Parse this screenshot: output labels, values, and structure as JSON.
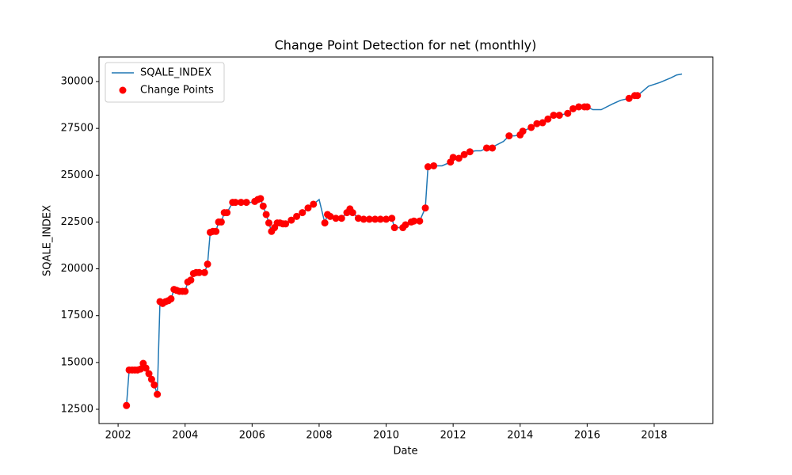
{
  "chart_data": {
    "type": "line",
    "title": "Change Point Detection for net (monthly)",
    "x_label": "Date",
    "y_label": "SQALE_INDEX",
    "xlim": [
      2001.43,
      2019.75
    ],
    "ylim": [
      11739,
      31311
    ],
    "xticks": [
      2002,
      2004,
      2006,
      2008,
      2010,
      2012,
      2014,
      2016,
      2018
    ],
    "yticks": [
      12500,
      15000,
      17500,
      20000,
      22500,
      25000,
      27500,
      30000
    ],
    "legend": "upper left",
    "series": [
      {
        "name": "SQALE_INDEX",
        "type": "line",
        "color": "#1f77b4",
        "x": [
          2002.25,
          2002.33,
          2002.42,
          2002.5,
          2002.58,
          2002.67,
          2002.75,
          2002.83,
          2002.92,
          2003.0,
          2003.08,
          2003.17,
          2003.25,
          2003.33,
          2003.42,
          2003.5,
          2003.58,
          2003.67,
          2003.75,
          2003.83,
          2003.92,
          2004.0,
          2004.08,
          2004.17,
          2004.25,
          2004.33,
          2004.42,
          2004.58,
          2004.67,
          2004.75,
          2004.83,
          2004.92,
          2005.0,
          2005.08,
          2005.17,
          2005.25,
          2005.42,
          2005.5,
          2005.67,
          2005.83,
          2006.0,
          2006.08,
          2006.17,
          2006.25,
          2006.33,
          2006.42,
          2006.5,
          2006.58,
          2006.67,
          2006.75,
          2006.83,
          2006.92,
          2007.0,
          2007.17,
          2007.33,
          2007.5,
          2007.67,
          2007.83,
          2008.0,
          2008.17,
          2008.25,
          2008.33,
          2008.5,
          2008.67,
          2008.83,
          2008.92,
          2009.0,
          2009.17,
          2009.33,
          2009.5,
          2010.0,
          2010.17,
          2010.25,
          2010.5,
          2010.58,
          2010.75,
          2010.83,
          2011.0,
          2011.17,
          2011.25,
          2011.42,
          2011.67,
          2011.92,
          2012.0,
          2012.17,
          2012.33,
          2012.5,
          2012.67,
          2012.83,
          2013.0,
          2013.17,
          2013.5,
          2013.67,
          2013.83,
          2014.0,
          2014.08,
          2014.33,
          2014.5,
          2014.67,
          2014.83,
          2015.0,
          2015.17,
          2015.42,
          2015.58,
          2015.75,
          2016.0,
          2016.17,
          2016.42,
          2016.75,
          2017.0,
          2017.25,
          2017.42,
          2017.5,
          2017.67,
          2017.83,
          2018.17,
          2018.5,
          2018.67,
          2018.83
        ],
        "values": [
          12700,
          14600,
          14600,
          14600,
          14600,
          14650,
          14950,
          14700,
          14400,
          14100,
          13800,
          13300,
          18250,
          18150,
          18250,
          18300,
          18400,
          18900,
          18850,
          18800,
          18800,
          18800,
          19300,
          19400,
          19750,
          19800,
          19800,
          19800,
          20250,
          21950,
          22000,
          22000,
          22500,
          22500,
          23000,
          23000,
          23550,
          23550,
          23550,
          23550,
          23550,
          23600,
          23700,
          23750,
          23350,
          22900,
          22450,
          22000,
          22200,
          22450,
          22450,
          22400,
          22400,
          22600,
          22800,
          23000,
          23250,
          23450,
          23700,
          22450,
          22900,
          22800,
          22700,
          22700,
          23000,
          23200,
          23000,
          22700,
          22650,
          22650,
          22650,
          22700,
          22200,
          22200,
          22350,
          22500,
          22550,
          22550,
          23250,
          25450,
          25500,
          25500,
          25700,
          25950,
          25900,
          26100,
          26250,
          26300,
          26300,
          26450,
          26500,
          26800,
          27100,
          27100,
          27150,
          27350,
          27550,
          27750,
          27800,
          28000,
          28200,
          28200,
          28300,
          28550,
          28650,
          28650,
          28500,
          28500,
          28800,
          29000,
          29100,
          29250,
          29250,
          29500,
          29750,
          29950,
          30200,
          30350,
          30400
        ]
      },
      {
        "name": "Change Points",
        "type": "scatter",
        "color": "#ff0000",
        "x": [
          2002.25,
          2002.33,
          2002.42,
          2002.5,
          2002.58,
          2002.67,
          2002.75,
          2002.83,
          2002.92,
          2003.0,
          2003.08,
          2003.17,
          2003.25,
          2003.33,
          2003.42,
          2003.5,
          2003.58,
          2003.67,
          2003.75,
          2003.83,
          2003.92,
          2004.0,
          2004.08,
          2004.17,
          2004.25,
          2004.33,
          2004.42,
          2004.58,
          2004.67,
          2004.75,
          2004.83,
          2004.92,
          2005.0,
          2005.08,
          2005.17,
          2005.25,
          2005.42,
          2005.5,
          2005.67,
          2005.83,
          2006.08,
          2006.17,
          2006.25,
          2006.33,
          2006.42,
          2006.5,
          2006.58,
          2006.67,
          2006.75,
          2006.83,
          2006.92,
          2007.0,
          2007.17,
          2007.33,
          2007.5,
          2007.67,
          2007.83,
          2008.17,
          2008.25,
          2008.33,
          2008.5,
          2008.67,
          2008.83,
          2008.92,
          2009.0,
          2009.17,
          2009.33,
          2009.5,
          2009.67,
          2009.83,
          2010.0,
          2010.17,
          2010.25,
          2010.5,
          2010.58,
          2010.75,
          2010.83,
          2011.0,
          2011.17,
          2011.25,
          2011.42,
          2011.92,
          2012.0,
          2012.17,
          2012.33,
          2012.5,
          2013.0,
          2013.17,
          2013.67,
          2014.0,
          2014.08,
          2014.33,
          2014.5,
          2014.67,
          2014.83,
          2015.0,
          2015.17,
          2015.42,
          2015.58,
          2015.75,
          2015.92,
          2016.0,
          2017.25,
          2017.42,
          2017.5
        ],
        "values": [
          12700,
          14600,
          14600,
          14600,
          14600,
          14650,
          14950,
          14700,
          14400,
          14100,
          13800,
          13300,
          18250,
          18150,
          18250,
          18300,
          18400,
          18900,
          18850,
          18800,
          18800,
          18800,
          19300,
          19400,
          19750,
          19800,
          19800,
          19800,
          20250,
          21950,
          22000,
          22000,
          22500,
          22500,
          23000,
          23000,
          23550,
          23550,
          23550,
          23550,
          23600,
          23700,
          23750,
          23350,
          22900,
          22450,
          22000,
          22200,
          22450,
          22450,
          22400,
          22400,
          22600,
          22800,
          23000,
          23250,
          23450,
          22450,
          22900,
          22800,
          22700,
          22700,
          23000,
          23200,
          23000,
          22700,
          22650,
          22650,
          22650,
          22650,
          22650,
          22700,
          22200,
          22200,
          22350,
          22500,
          22550,
          22550,
          23250,
          25450,
          25500,
          25700,
          25950,
          25900,
          26100,
          26250,
          26450,
          26450,
          27100,
          27150,
          27350,
          27550,
          27750,
          27800,
          28000,
          28200,
          28200,
          28300,
          28550,
          28650,
          28650,
          28650,
          29100,
          29250,
          29250
        ]
      }
    ]
  }
}
